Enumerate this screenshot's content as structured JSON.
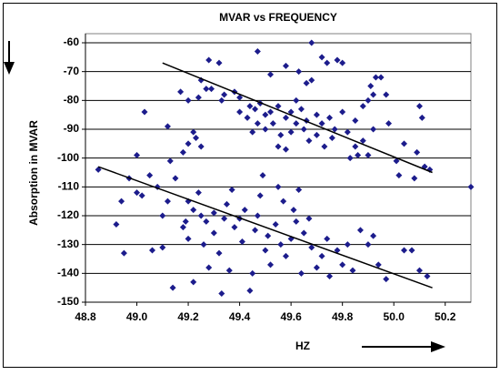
{
  "chart_data": {
    "type": "scatter",
    "title": "MVAR vs FREQUENCY",
    "x_label": "HZ",
    "y_label": "Absorption in MVAR",
    "xlim": [
      48.8,
      50.3
    ],
    "ylim": [
      -150,
      -60
    ],
    "xticks": [
      48.8,
      {
        "value": 49,
        "label": "49.0"
      },
      49.2,
      49.4,
      49.6,
      49.8,
      {
        "value": 50,
        "label": "50.0"
      },
      50.2
    ],
    "yticks": [
      -60,
      -70,
      -80,
      -90,
      -100,
      -110,
      -120,
      -130,
      -140,
      -150
    ],
    "grid": true,
    "points": {
      "color": "#1c1c8c",
      "x": [
        49.28,
        49.32,
        49.47,
        49.68,
        49.72,
        49.74,
        49.78,
        49.8,
        49.58,
        49.63,
        49.52,
        49.93,
        49.95,
        49.91,
        49.25,
        49.27,
        49.29,
        49.34,
        49.38,
        49.4,
        49.33,
        49.17,
        49.2,
        49.24,
        49.66,
        49.68,
        49.44,
        49.46,
        49.48,
        49.5,
        49.52,
        49.55,
        49.58,
        49.6,
        49.62,
        49.64,
        49.66,
        49.7,
        49.72,
        49.75,
        49.77,
        49.8,
        49.85,
        49.88,
        49.9,
        49.92,
        49.97,
        50.1,
        50.11,
        49.43,
        49.47,
        49.5,
        49.53,
        49.56,
        49.6,
        49.65,
        49.67,
        49.7,
        49.73,
        49.76,
        49.82,
        49.85,
        49.88,
        49.92,
        49.98,
        50.04,
        50.09,
        49.55,
        49.58,
        49.62,
        49.83,
        49.9,
        49.86,
        50.01,
        50.08,
        50.12,
        50.14,
        50.02,
        49.22,
        49.23,
        49.25,
        49.2,
        49.12,
        49.18,
        49.4,
        49.45,
        48.85,
        48.92,
        48.94,
        48.97,
        49.0,
        49.02,
        49.0,
        49.03,
        49.05,
        49.06,
        49.08,
        49.1,
        49.1,
        49.12,
        49.13,
        49.15,
        49.18,
        49.19,
        49.2,
        49.2,
        49.22,
        49.24,
        49.25,
        49.26,
        49.27,
        49.28,
        49.3,
        49.3,
        49.32,
        49.33,
        49.34,
        49.35,
        49.37,
        49.38,
        49.4,
        49.41,
        49.42,
        49.44,
        49.45,
        49.46,
        49.47,
        49.48,
        49.5,
        49.51,
        49.52,
        49.54,
        49.55,
        49.56,
        49.58,
        49.6,
        49.61,
        49.62,
        49.64,
        49.65,
        49.67,
        49.68,
        49.7,
        49.72,
        49.74,
        49.75,
        49.78,
        49.8,
        49.82,
        49.84,
        49.87,
        49.9,
        49.92,
        49.94,
        49.97,
        50.04,
        50.07,
        50.1,
        50.13,
        50.3,
        49.14,
        49.22,
        48.95,
        49.63,
        49.36,
        49.49,
        49.57
      ],
      "values": [
        -66,
        -67,
        -63,
        -60,
        -65,
        -67,
        -66,
        -67,
        -68,
        -70,
        -71,
        -72,
        -72,
        -75,
        -73,
        -76,
        -76,
        -78,
        -77,
        -79,
        -80,
        -77,
        -80,
        -79,
        -74,
        -73,
        -82,
        -83,
        -81,
        -85,
        -84,
        -82,
        -86,
        -84,
        -80,
        -83,
        -87,
        -85,
        -88,
        -86,
        -90,
        -84,
        -87,
        -82,
        -80,
        -78,
        -78,
        -82,
        -86,
        -86,
        -88,
        -90,
        -88,
        -92,
        -91,
        -90,
        -94,
        -92,
        -96,
        -93,
        -91,
        -96,
        -94,
        -90,
        -88,
        -95,
        -98,
        -96,
        -97,
        -88,
        -100,
        -99,
        -99,
        -101,
        -107,
        -103,
        -104,
        -106,
        -91,
        -93,
        -96,
        -95,
        -89,
        -98,
        -84,
        -91,
        -104,
        -123,
        -115,
        -107,
        -112,
        -113,
        -99,
        -84,
        -106,
        -132,
        -110,
        -120,
        -131,
        -115,
        -101,
        -107,
        -124,
        -122,
        -128,
        -115,
        -118,
        -112,
        -120,
        -130,
        -122,
        -138,
        -119,
        -126,
        -133,
        -147,
        -121,
        -116,
        -111,
        -124,
        -121,
        -129,
        -118,
        -146,
        -140,
        -125,
        -120,
        -113,
        -132,
        -127,
        -137,
        -123,
        -110,
        -130,
        -134,
        -128,
        -118,
        -122,
        -140,
        -126,
        -121,
        -131,
        -138,
        -134,
        -128,
        -141,
        -132,
        -137,
        -130,
        -139,
        -125,
        -130,
        -127,
        -137,
        -142,
        -132,
        -132,
        -139,
        -141,
        -110,
        -145,
        -143,
        -133,
        -111,
        -139,
        -106,
        -115
      ]
    },
    "trendlines": [
      {
        "color": "#000000",
        "x": [
          49.1,
          50.15
        ],
        "values": [
          -67,
          -105
        ]
      },
      {
        "color": "#000000",
        "x": [
          48.85,
          50.15
        ],
        "values": [
          -103,
          -145
        ]
      }
    ]
  }
}
